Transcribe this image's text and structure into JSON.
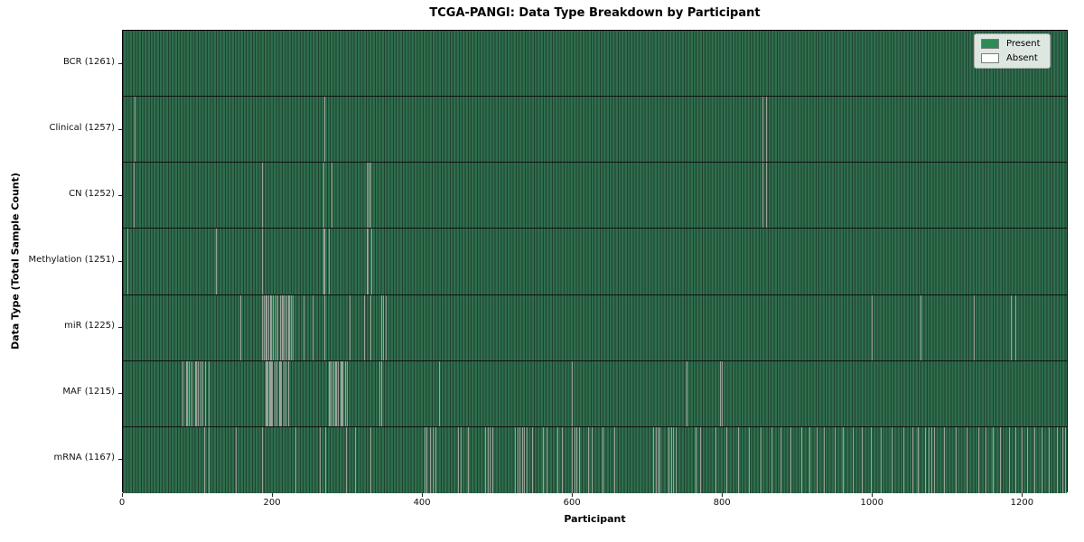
{
  "title": "TCGA-PANGI: Data Type Breakdown by Participant",
  "colors": {
    "present": "#2e8b57",
    "absent": "#ffffff",
    "row_fill_rendered": "#2f6e4d",
    "cell_edge_rendered": "#1e4130",
    "absent_line_rendered": "#9aa49b",
    "background": "#ffffff"
  },
  "chart_data": {
    "type": "heatmap",
    "title": "TCGA-PANGI: Data Type Breakdown by Participant",
    "xlabel": "Participant",
    "ylabel": "Data Type (Total Sample Count)",
    "x_ticks": [
      0,
      200,
      400,
      600,
      800,
      1000,
      1200
    ],
    "x_range": [
      0,
      1261
    ],
    "n_participants": 1261,
    "grid": false,
    "legend": {
      "position": "upper right",
      "entries": [
        {
          "label": "Present",
          "color": "#2e8b57"
        },
        {
          "label": "Absent",
          "color": "#ffffff"
        }
      ]
    },
    "rows": [
      {
        "data_type": "BCR",
        "label": "BCR (1261)",
        "present_count": 1261,
        "absent_count": 0,
        "absent_positions": []
      },
      {
        "data_type": "Clinical",
        "label": "Clinical (1257)",
        "present_count": 1257,
        "absent_count": 4,
        "absent_positions": [
          16,
          268,
          853,
          858
        ]
      },
      {
        "data_type": "CN",
        "label": "CN (1252)",
        "present_count": 1252,
        "absent_count": 9,
        "absent_positions": [
          15,
          185,
          267,
          278,
          325,
          327,
          330,
          853,
          857
        ]
      },
      {
        "data_type": "Methylation",
        "label": "Methylation (1251)",
        "present_count": 1251,
        "absent_count": 10,
        "absent_positions": [
          6,
          124,
          185,
          267,
          268,
          274,
          275,
          325,
          326,
          331
        ]
      },
      {
        "data_type": "miR",
        "label": "miR (1225)",
        "present_count": 1225,
        "absent_count": 36,
        "absent_positions": [
          157,
          185,
          186,
          188,
          190,
          191,
          194,
          196,
          197,
          200,
          203,
          204,
          206,
          209,
          212,
          213,
          215,
          218,
          221,
          222,
          224,
          227,
          241,
          253,
          269,
          302,
          322,
          330,
          345,
          347,
          350,
          999,
          1063,
          1135,
          1184,
          1190
        ]
      },
      {
        "data_type": "MAF",
        "label": "MAF (1215)",
        "present_count": 1215,
        "absent_count": 46,
        "absent_positions": [
          80,
          84,
          86,
          88,
          92,
          96,
          98,
          100,
          103,
          106,
          110,
          114,
          190,
          191,
          193,
          195,
          196,
          198,
          199,
          202,
          205,
          208,
          209,
          211,
          214,
          217,
          220,
          275,
          276,
          278,
          281,
          283,
          284,
          287,
          290,
          292,
          293,
          296,
          299,
          342,
          345,
          422,
          599,
          752,
          796,
          798
        ]
      },
      {
        "data_type": "mRNA",
        "label": "mRNA (1167)",
        "present_count": 1167,
        "absent_count": 94,
        "absent_positions": [
          108,
          115,
          150,
          185,
          230,
          262,
          270,
          298,
          310,
          330,
          402,
          405,
          409,
          413,
          417,
          447,
          450,
          460,
          483,
          486,
          489,
          492,
          523,
          526,
          529,
          532,
          535,
          538,
          545,
          560,
          565,
          579,
          585,
          599,
          602,
          605,
          608,
          620,
          625,
          640,
          655,
          707,
          710,
          713,
          716,
          728,
          731,
          734,
          737,
          764,
          770,
          790,
          805,
          820,
          835,
          850,
          865,
          877,
          890,
          905,
          915,
          925,
          935,
          949,
          960,
          973,
          985,
          997,
          1010,
          1025,
          1040,
          1053,
          1060,
          1070,
          1074,
          1078,
          1082,
          1095,
          1110,
          1125,
          1140,
          1150,
          1160,
          1170,
          1182,
          1190,
          1198,
          1206,
          1215,
          1225,
          1235,
          1245,
          1252,
          1256
        ]
      }
    ]
  }
}
